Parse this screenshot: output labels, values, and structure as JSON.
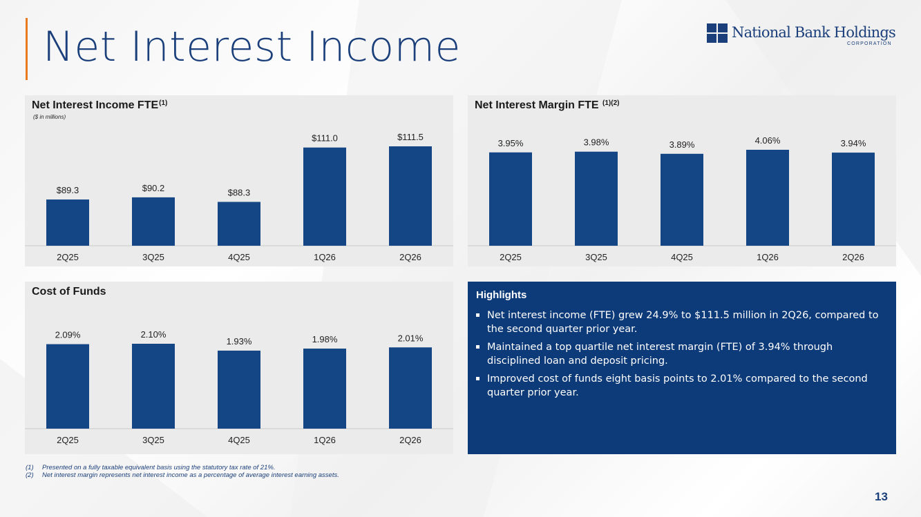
{
  "page": {
    "title": "Net Interest Income",
    "page_number": "13"
  },
  "logo": {
    "name": "National Bank Holdings",
    "subtitle": "CORPORATION"
  },
  "colors": {
    "bar": "#144584",
    "accent": "#e8791f",
    "navy": "#0d3a78",
    "panel_bg": "#ebebeb"
  },
  "chart_data": [
    {
      "id": "nii",
      "type": "bar",
      "title": "Net Interest Income FTE",
      "title_superscript": "(1)",
      "subtitle": "($ in millions)",
      "categories": [
        "2Q25",
        "3Q25",
        "4Q25",
        "1Q26",
        "2Q26"
      ],
      "values": [
        89.3,
        90.2,
        88.3,
        111.0,
        111.5
      ],
      "data_labels": [
        "$89.3",
        "$90.2",
        "$88.3",
        "$111.0",
        "$111.5"
      ],
      "grid": false,
      "yaxis_visible": false
    },
    {
      "id": "nim",
      "type": "bar",
      "title": "Net Interest Margin FTE",
      "title_superscript": "(1)(2)",
      "categories": [
        "2Q25",
        "3Q25",
        "4Q25",
        "1Q26",
        "2Q26"
      ],
      "values": [
        3.95,
        3.98,
        3.89,
        4.06,
        3.94
      ],
      "data_labels": [
        "3.95%",
        "3.98%",
        "3.89%",
        "4.06%",
        "3.94%"
      ],
      "grid": false,
      "yaxis_visible": false
    },
    {
      "id": "cof",
      "type": "bar",
      "title": "Cost of Funds",
      "categories": [
        "2Q25",
        "3Q25",
        "4Q25",
        "1Q26",
        "2Q26"
      ],
      "values": [
        2.09,
        2.1,
        1.93,
        1.98,
        2.01
      ],
      "data_labels": [
        "2.09%",
        "2.10%",
        "1.93%",
        "1.98%",
        "2.01%"
      ],
      "grid": false,
      "yaxis_visible": false
    }
  ],
  "highlights": {
    "title": "Highlights",
    "items": [
      "Net interest income (FTE) grew 24.9% to $111.5 million in 2Q26, compared to the second quarter prior year.",
      "Maintained a top quartile net interest margin (FTE) of 3.94% through disciplined loan and deposit pricing.",
      "Improved cost of funds eight basis points to 2.01% compared to the second quarter prior year."
    ]
  },
  "footnotes": [
    {
      "mark": "(1)",
      "text": "Presented on a fully taxable equivalent basis using the statutory tax rate of 21%."
    },
    {
      "mark": "(2)",
      "text": "Net interest margin represents net interest income as a percentage of average interest earning assets."
    }
  ]
}
